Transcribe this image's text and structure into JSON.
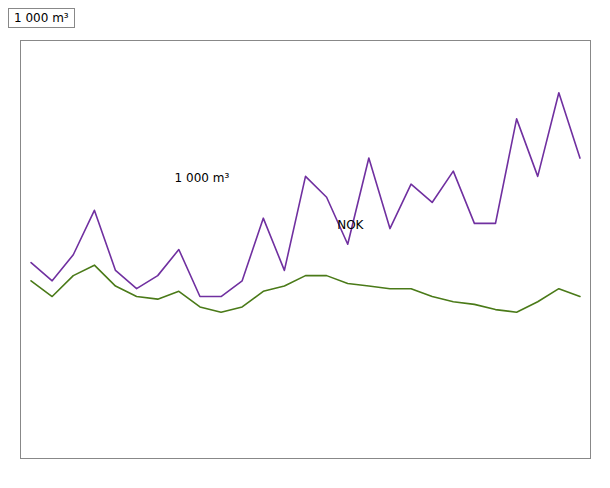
{
  "chart_data": {
    "type": "line",
    "ylabel": "1 000 m³",
    "x": [
      0,
      1,
      2,
      3,
      4,
      5,
      6,
      7,
      8,
      9,
      10,
      11,
      12,
      13,
      14,
      15,
      16,
      17,
      18,
      19,
      20,
      21,
      22,
      23,
      24,
      25,
      26
    ],
    "series": [
      {
        "color": "#7030a0",
        "values": [
          75,
          68,
          78,
          95,
          72,
          65,
          70,
          80,
          62,
          62,
          68,
          92,
          72,
          108,
          100,
          82,
          115,
          88,
          105,
          98,
          110,
          90,
          90,
          130,
          108,
          140,
          115
        ]
      },
      {
        "color": "#4a7a18",
        "values": [
          68,
          62,
          70,
          74,
          66,
          62,
          61,
          64,
          58,
          56,
          58,
          64,
          66,
          70,
          70,
          67,
          66,
          65,
          65,
          62,
          60,
          59,
          57,
          56,
          60,
          65,
          62
        ]
      }
    ],
    "xlim": [
      -0.5,
      26.5
    ],
    "ylim": [
      0,
      160
    ],
    "xticks": [],
    "yticks": [],
    "grid": false,
    "tick_labels": false,
    "annotations": [
      {
        "text": "1 000 m³",
        "x": 6.8,
        "y": 106
      },
      {
        "text": "NOK",
        "x": 14.5,
        "y": 88
      }
    ]
  }
}
